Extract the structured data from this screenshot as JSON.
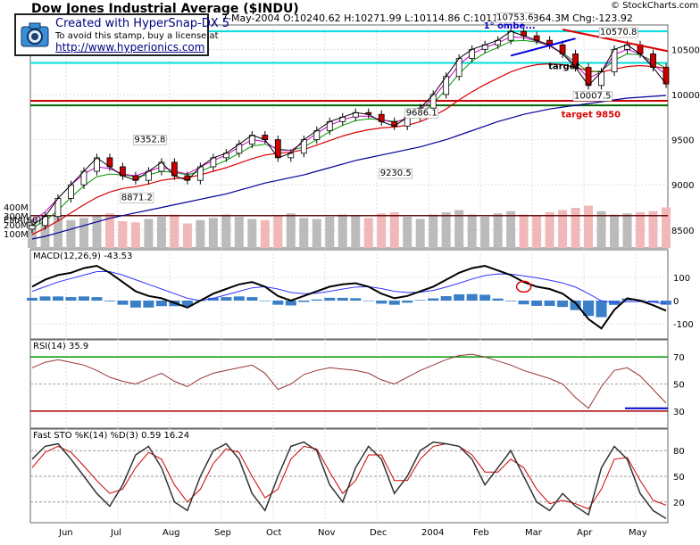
{
  "copyright": "© StockCharts.com",
  "header": {
    "title": "Dow Jones Industrial Average ($INDU)",
    "quote": "7-May-2004 O:10240.62 H:10271.99 L:10114.86 C:10117.34 V:364.3M Chg:-123.92"
  },
  "stamp": {
    "line1": "Created with HyperSnap-DX 5",
    "line2": "To avoid this stamp, buy a license at",
    "line3": "http://www.hyperionics.com"
  },
  "colors": {
    "price": "#000000",
    "up_candle": "#ffffff",
    "down_candle": "#cc0000",
    "ma_short": "#cc00cc",
    "ma_mid": "#009900",
    "ma_red": "#dd0000",
    "ma_long": "#000099",
    "cyan_line": "#00dddd",
    "support_red": "#cc0000",
    "support_green": "#006600",
    "volume_up": "#bbbbbb",
    "volume_down": "#f0b8b8",
    "macd_line": "#000000",
    "macd_signal": "#3333ff",
    "macd_hist": "#3a7fc8",
    "rsi_line": "#993333",
    "sto_k": "#333333",
    "sto_d": "#cc0000"
  },
  "chart_data": [
    {
      "type": "line",
      "panel": "price",
      "title": "Dow Jones Industrial Average ($INDU)",
      "x_labels": [
        "Jun",
        "Jul",
        "Aug",
        "Sep",
        "Oct",
        "Nov",
        "Dec",
        "2004",
        "Feb",
        "Mar",
        "Apr",
        "May"
      ],
      "y_ticks": [
        8500,
        9000,
        9500,
        10000,
        10500
      ],
      "ylim": [
        8400,
        10750
      ],
      "weekly_close": [
        8550,
        8650,
        8850,
        9000,
        9150,
        9300,
        9200,
        9100,
        9050,
        9150,
        9250,
        9100,
        9050,
        9200,
        9300,
        9350,
        9450,
        9550,
        9500,
        9300,
        9350,
        9500,
        9600,
        9700,
        9750,
        9800,
        9780,
        9700,
        9650,
        9750,
        9850,
        10000,
        10200,
        10400,
        10500,
        10550,
        10600,
        10700,
        10650,
        10600,
        10550,
        10450,
        10300,
        10100,
        10250,
        10500,
        10550,
        10450,
        10300,
        10117
      ],
      "ma_short": [
        8600,
        8700,
        8850,
        9000,
        9120,
        9200,
        9180,
        9120,
        9100,
        9150,
        9200,
        9150,
        9120,
        9200,
        9270,
        9330,
        9420,
        9500,
        9480,
        9380,
        9380,
        9470,
        9570,
        9660,
        9720,
        9760,
        9760,
        9720,
        9690,
        9740,
        9830,
        9960,
        10140,
        10330,
        10450,
        10520,
        10570,
        10640,
        10630,
        10590,
        10540,
        10450,
        10330,
        10180,
        10250,
        10440,
        10500,
        10450,
        10330,
        10220
      ],
      "ma_mid": [
        8520,
        8600,
        8720,
        8860,
        8990,
        9090,
        9120,
        9110,
        9090,
        9110,
        9150,
        9140,
        9110,
        9150,
        9210,
        9270,
        9350,
        9430,
        9450,
        9400,
        9380,
        9420,
        9500,
        9590,
        9660,
        9710,
        9730,
        9720,
        9700,
        9720,
        9790,
        9900,
        10060,
        10230,
        10370,
        10460,
        10520,
        10590,
        10600,
        10580,
        10540,
        10460,
        10360,
        10250,
        10260,
        10380,
        10450,
        10440,
        10370,
        10290
      ],
      "ma_red": [
        8450,
        8520,
        8600,
        8690,
        8780,
        8860,
        8920,
        8960,
        8980,
        9010,
        9050,
        9070,
        9080,
        9110,
        9150,
        9190,
        9240,
        9290,
        9330,
        9350,
        9360,
        9390,
        9440,
        9490,
        9540,
        9580,
        9610,
        9630,
        9640,
        9660,
        9700,
        9760,
        9840,
        9940,
        10030,
        10110,
        10180,
        10250,
        10300,
        10330,
        10340,
        10330,
        10300,
        10260,
        10250,
        10280,
        10310,
        10320,
        10310,
        10290
      ],
      "ma_long": [
        8400,
        8430,
        8470,
        8510,
        8550,
        8590,
        8630,
        8660,
        8690,
        8720,
        8750,
        8780,
        8810,
        8840,
        8870,
        8900,
        8940,
        8980,
        9020,
        9050,
        9080,
        9110,
        9150,
        9190,
        9230,
        9270,
        9300,
        9330,
        9360,
        9390,
        9420,
        9460,
        9500,
        9550,
        9600,
        9650,
        9700,
        9740,
        9780,
        9810,
        9840,
        9860,
        9880,
        9900,
        9920,
        9940,
        9960,
        9970,
        9980,
        9990
      ],
      "horizontal_lines": [
        {
          "value": 10700,
          "color": "cyan"
        },
        {
          "value": 10350,
          "color": "cyan"
        },
        {
          "value": 9930,
          "color": "red"
        },
        {
          "value": 9880,
          "color": "green"
        }
      ],
      "annotations": [
        "9352.8",
        "8871.2",
        "9686.1",
        "9230.5",
        "10753.6",
        "10570.8",
        "10007.5",
        "target",
        "target 9850",
        "1° ombe..."
      ],
      "legend_extra": "EMA(60)"
    },
    {
      "type": "bar",
      "panel": "volume",
      "y_ticks": [
        "400M",
        "300M",
        "200M",
        "100M"
      ],
      "volume_M": [
        260,
        280,
        300,
        250,
        270,
        290,
        310,
        240,
        230,
        260,
        280,
        300,
        220,
        250,
        270,
        300,
        280,
        260,
        250,
        290,
        310,
        270,
        260,
        280,
        300,
        290,
        270,
        310,
        320,
        280,
        260,
        300,
        320,
        340,
        300,
        280,
        310,
        330,
        300,
        290,
        320,
        340,
        360,
        380,
        330,
        300,
        310,
        320,
        330,
        364
      ],
      "ema60_M": 290
    },
    {
      "type": "line",
      "panel": "MACD",
      "label": "MACD(12,26,9) -43.53",
      "y_ticks": [
        100,
        0,
        -100
      ],
      "ylim": [
        -150,
        200
      ],
      "macd": [
        60,
        90,
        110,
        120,
        140,
        150,
        120,
        80,
        40,
        20,
        10,
        -10,
        -30,
        0,
        30,
        50,
        70,
        80,
        60,
        20,
        0,
        20,
        40,
        60,
        70,
        75,
        60,
        30,
        10,
        20,
        40,
        60,
        90,
        120,
        140,
        150,
        130,
        110,
        80,
        60,
        50,
        30,
        -10,
        -80,
        -120,
        -40,
        10,
        0,
        -20,
        -43.53
      ],
      "signal": [
        40,
        60,
        80,
        95,
        110,
        125,
        125,
        110,
        90,
        70,
        50,
        30,
        10,
        0,
        10,
        25,
        40,
        55,
        60,
        50,
        35,
        30,
        32,
        40,
        50,
        58,
        60,
        52,
        40,
        35,
        36,
        44,
        58,
        75,
        93,
        108,
        115,
        114,
        107,
        98,
        88,
        76,
        58,
        30,
        -1,
        -9,
        -5,
        -4,
        -7,
        -14
      ]
    },
    {
      "type": "line",
      "panel": "RSI",
      "label": "RSI(14) 35.9",
      "y_ticks": [
        70,
        50,
        30
      ],
      "ylim": [
        20,
        80
      ],
      "rsi": [
        62,
        66,
        68,
        66,
        64,
        60,
        55,
        52,
        50,
        54,
        58,
        52,
        48,
        54,
        58,
        60,
        62,
        64,
        58,
        46,
        50,
        57,
        60,
        62,
        61,
        60,
        58,
        53,
        50,
        55,
        60,
        64,
        68,
        71,
        72,
        70,
        67,
        64,
        60,
        57,
        54,
        50,
        40,
        32,
        48,
        60,
        62,
        56,
        46,
        35.9
      ]
    },
    {
      "type": "line",
      "panel": "Stochastic",
      "label": "Fast STO %K(14) %D(3) 0.59 16.24",
      "y_ticks": [
        80,
        50,
        20
      ],
      "ylim": [
        0,
        100
      ],
      "k": [
        70,
        85,
        88,
        70,
        50,
        30,
        15,
        40,
        75,
        85,
        60,
        20,
        10,
        50,
        80,
        88,
        70,
        30,
        10,
        50,
        85,
        90,
        80,
        40,
        20,
        60,
        85,
        70,
        30,
        50,
        80,
        90,
        88,
        85,
        70,
        40,
        60,
        80,
        50,
        20,
        10,
        30,
        15,
        5,
        60,
        85,
        70,
        30,
        10,
        0.59
      ],
      "d": [
        60,
        78,
        85,
        78,
        62,
        45,
        30,
        35,
        60,
        78,
        70,
        40,
        20,
        35,
        65,
        82,
        78,
        50,
        25,
        35,
        70,
        85,
        82,
        55,
        30,
        45,
        75,
        75,
        45,
        45,
        70,
        85,
        88,
        85,
        75,
        55,
        55,
        70,
        60,
        35,
        18,
        22,
        18,
        12,
        35,
        70,
        72,
        45,
        22,
        16.24
      ]
    }
  ]
}
